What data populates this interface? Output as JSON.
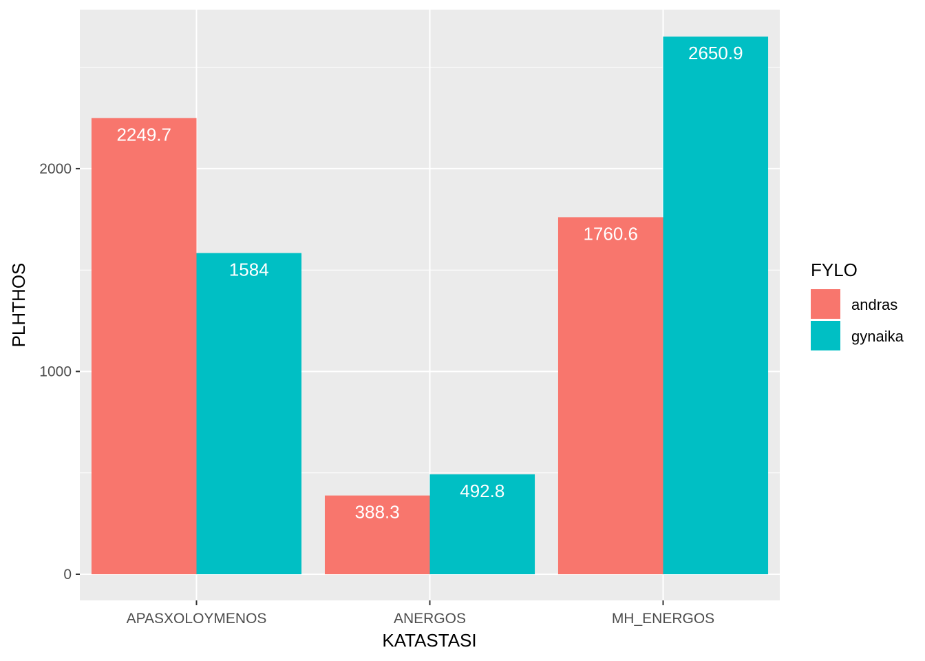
{
  "chart_data": {
    "type": "bar",
    "title": "",
    "xlabel": "KATASTASI",
    "ylabel": "PLHTHOS",
    "categories": [
      "APASXOLOYMENOS",
      "ANERGOS",
      "MH_ENERGOS"
    ],
    "series": [
      {
        "name": "andras",
        "color": "#F8766D",
        "values": [
          2249.7,
          388.3,
          1760.6
        ],
        "labels": [
          "2249.7",
          "388.3",
          "1760.6"
        ]
      },
      {
        "name": "gynaika",
        "color": "#00BFC4",
        "values": [
          1584,
          492.8,
          2650.9
        ],
        "labels": [
          "1584",
          "492.8",
          "2650.9"
        ]
      }
    ],
    "ylim": [
      -129,
      2784
    ],
    "yticks": [
      0,
      1000,
      2000
    ],
    "ytick_labels": [
      "0",
      "1000",
      "2000"
    ],
    "grid": true,
    "legend": {
      "title": "FYLO",
      "position": "right",
      "entries": [
        "andras",
        "gynaika"
      ]
    },
    "panel_background": "#EBEBEB"
  }
}
